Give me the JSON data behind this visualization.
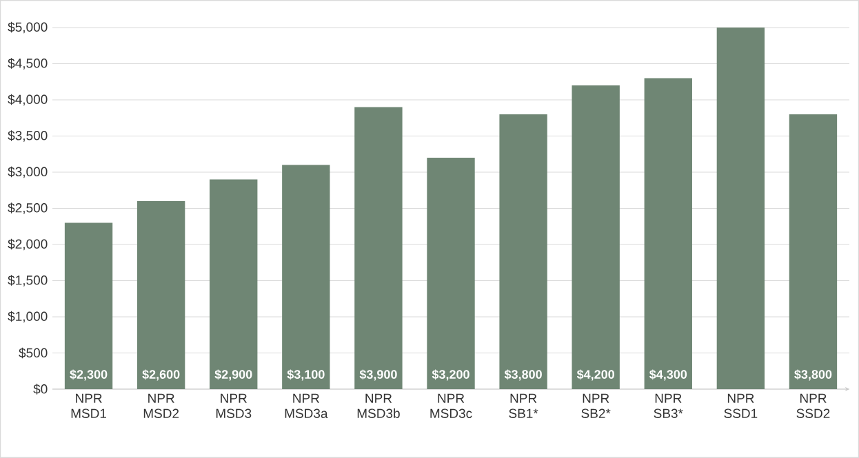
{
  "chart_data": {
    "type": "bar",
    "categories": [
      "NPR MSD1",
      "NPR MSD2",
      "NPR MSD3",
      "NPR MSD3a",
      "NPR MSD3b",
      "NPR MSD3c",
      "NPR SB1*",
      "NPR SB2*",
      "NPR SB3*",
      "NPR SSD1",
      "NPR SSD2"
    ],
    "values": [
      2300,
      2600,
      2900,
      3100,
      3900,
      3200,
      3800,
      4200,
      4300,
      5000,
      3800
    ],
    "value_labels": [
      "$2,300",
      "$2,600",
      "$2,900",
      "$3,100",
      "$3,900",
      "$3,200",
      "$3,800",
      "$4,200",
      "$4,300",
      null,
      "$3,800"
    ],
    "color": "#6f8674",
    "ylim": [
      0,
      5000
    ],
    "yticks": [
      {
        "value": 0,
        "label": "$0"
      },
      {
        "value": 500,
        "label": "$500"
      },
      {
        "value": 1000,
        "label": "$1,000"
      },
      {
        "value": 1500,
        "label": "$1,500"
      },
      {
        "value": 2000,
        "label": "$2,000"
      },
      {
        "value": 2500,
        "label": "$2,500"
      },
      {
        "value": 3000,
        "label": "$3,000"
      },
      {
        "value": 3500,
        "label": "$3,500"
      },
      {
        "value": 4000,
        "label": "$4,000"
      },
      {
        "value": 4500,
        "label": "$4,500"
      },
      {
        "value": 5000,
        "label": "$5,000"
      }
    ],
    "grid": "y"
  }
}
